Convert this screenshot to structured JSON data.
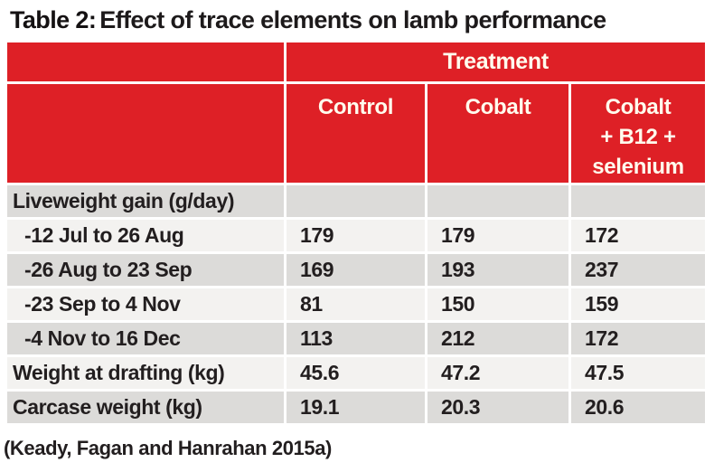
{
  "title": {
    "prefix": "Table 2:",
    "text": "Effect of trace elements on lamb performance"
  },
  "table": {
    "group_header": "Treatment",
    "columns": [
      "Control",
      "Cobalt",
      "Cobalt\n+  B12 +\nselenium"
    ],
    "rows": [
      {
        "label": "Liveweight gain (g/day)",
        "values": [
          "",
          "",
          ""
        ]
      },
      {
        "label": "-12 Jul to 26 Aug",
        "values": [
          "179",
          "179",
          "172"
        ]
      },
      {
        "label": "-26 Aug to 23 Sep",
        "values": [
          "169",
          "193",
          "237"
        ]
      },
      {
        "label": "-23 Sep to 4 Nov",
        "values": [
          "81",
          "150",
          "159"
        ]
      },
      {
        "label": "-4 Nov to 16 Dec",
        "values": [
          "113",
          "212",
          "172"
        ]
      },
      {
        "label": "Weight at drafting (kg)",
        "values": [
          "45.6",
          "47.2",
          "47.5"
        ]
      },
      {
        "label": "Carcase weight (kg)",
        "values": [
          "19.1",
          "20.3",
          "20.6"
        ]
      }
    ]
  },
  "footer": "(Keady, Fagan and Hanrahan 2015a)",
  "colors": {
    "header_red": "#de2026",
    "header_text": "#fffcee",
    "row_dark": "#dcdbd9",
    "row_light": "#f3f2f0",
    "body_text": "#221e1f"
  }
}
